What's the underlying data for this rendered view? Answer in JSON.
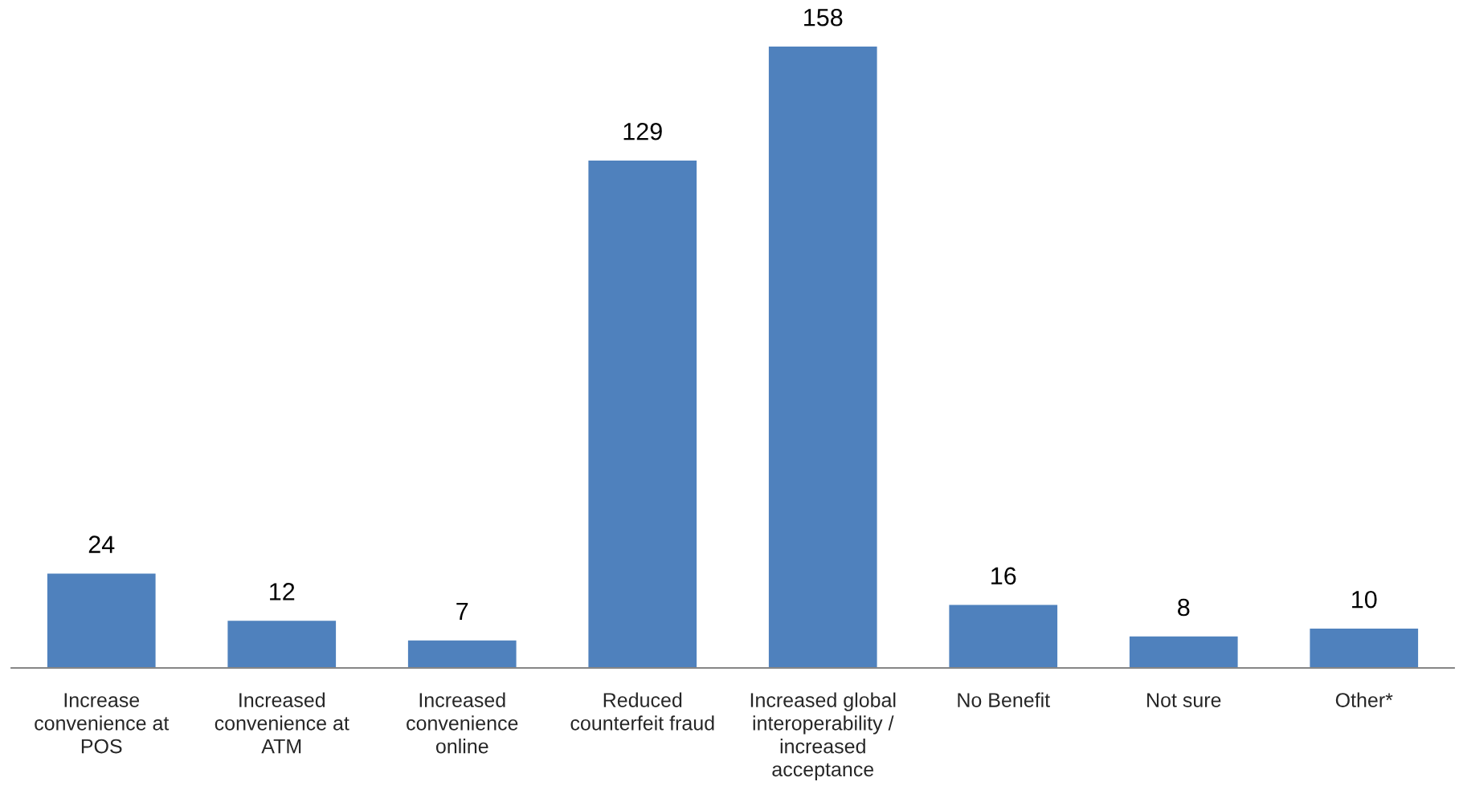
{
  "chart_data": {
    "type": "bar",
    "categories": [
      "Increase\nconvenience at\nPOS",
      "Increased\nconvenience at\nATM",
      "Increased\nconvenience\nonline",
      "Reduced\ncounterfeit fraud",
      "Increased global\ninteroperability /\nincreased\nacceptance",
      "No Benefit",
      "Not sure",
      "Other*"
    ],
    "values": [
      24,
      12,
      7,
      129,
      158,
      16,
      8,
      10
    ],
    "color": "#4f81bd",
    "data_labels": true
  }
}
